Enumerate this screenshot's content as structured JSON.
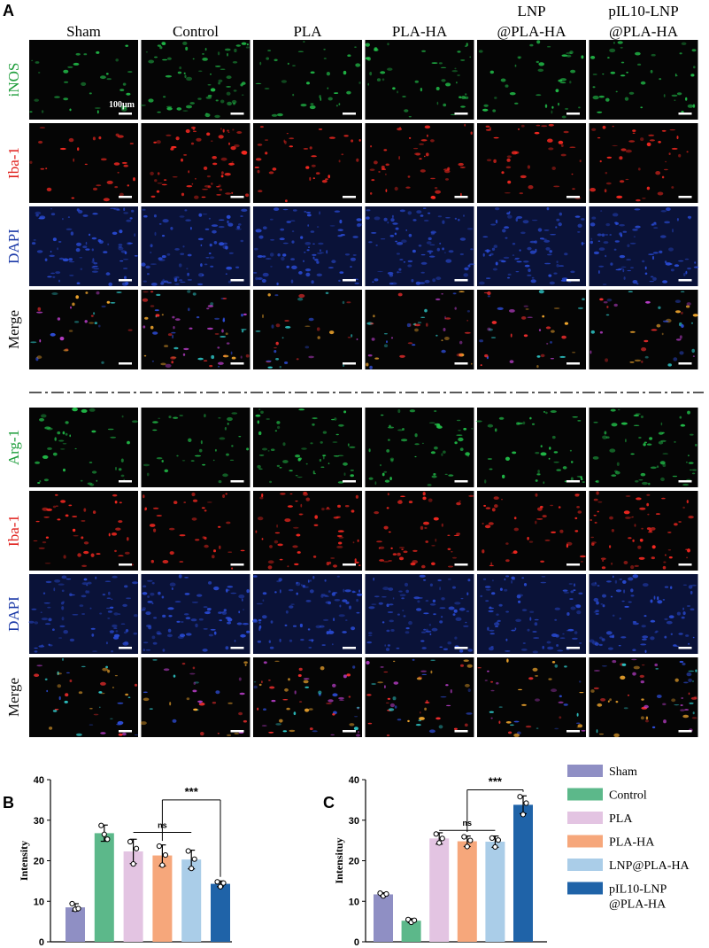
{
  "panel_labels": [
    "A",
    "B",
    "C"
  ],
  "columns": [
    "Sham",
    "Control",
    "PLA",
    "PLA-HA",
    "LNP\n@PLA-HA",
    "pIL10-LNP\n@PLA-HA"
  ],
  "scale_bar": "100μm",
  "blocks": [
    [
      {
        "label": "iNOS",
        "color": "#1f9e3c"
      },
      {
        "label": "Iba-1",
        "color": "#e0201c"
      },
      {
        "label": "DAPI",
        "color": "#1c3aa8"
      },
      {
        "label": "Merge",
        "color": "#111111"
      }
    ],
    [
      {
        "label": "Arg-1",
        "color": "#1f9e3c"
      },
      {
        "label": "Iba-1",
        "color": "#e0201c"
      },
      {
        "label": "DAPI",
        "color": "#1c3aa8"
      },
      {
        "label": "Merge",
        "color": "#111111"
      }
    ]
  ],
  "legend": [
    {
      "name": "Sham",
      "color": "#8f8fc4"
    },
    {
      "name": "Control",
      "color": "#5cb88a"
    },
    {
      "name": "PLA",
      "color": "#e3c4e2"
    },
    {
      "name": "PLA-HA",
      "color": "#f6a77b"
    },
    {
      "name": "LNP@PLA-HA",
      "color": "#aacde8"
    },
    {
      "name": "pIL10-LNP\n@PLA-HA",
      "color": "#1f63a8"
    }
  ],
  "chart_data": [
    {
      "type": "bar",
      "y_label": "Intensity",
      "ylim": [
        0,
        40
      ],
      "yticks": [
        0,
        10,
        20,
        30,
        40
      ],
      "values": [
        8.5,
        26.8,
        22.3,
        21.3,
        20.3,
        14.3
      ],
      "errors": [
        0.9,
        2.0,
        3.0,
        2.6,
        2.3,
        0.7
      ],
      "points": [
        [
          9.4,
          8.0,
          8.2
        ],
        [
          28.7,
          26.5,
          25.3
        ],
        [
          24.7,
          19.2,
          23.0
        ],
        [
          23.6,
          18.9,
          21.4
        ],
        [
          22.4,
          18.1,
          20.4
        ],
        [
          14.8,
          13.6,
          14.5
        ]
      ],
      "annotations": [
        {
          "text": "ns",
          "from": "PLA",
          "to": "LNP@PLA-HA",
          "y": 27,
          "legs": false
        },
        {
          "text": "***",
          "from": "PLA-HA",
          "to": "pIL10-LNP\n@PLA-HA",
          "y": 35,
          "legs": true
        }
      ]
    },
    {
      "type": "bar",
      "y_label": "Intensituy",
      "ylim": [
        0,
        40
      ],
      "yticks": [
        0,
        10,
        20,
        30,
        40
      ],
      "values": [
        11.7,
        5.2,
        25.5,
        24.8,
        24.7,
        33.8
      ],
      "errors": [
        0.4,
        0.5,
        1.4,
        1.3,
        1.4,
        2.2
      ],
      "points": [
        [
          12.0,
          11.3,
          11.8
        ],
        [
          5.5,
          4.8,
          5.3
        ],
        [
          26.6,
          24.4,
          25.5
        ],
        [
          25.9,
          23.5,
          25.0
        ],
        [
          25.6,
          23.4,
          25.1
        ],
        [
          35.8,
          31.4,
          34.2
        ]
      ],
      "annotations": [
        {
          "text": "ns",
          "from": "PLA",
          "to": "LNP@PLA-HA",
          "y": 27.5,
          "legs": false
        },
        {
          "text": "***",
          "from": "PLA-HA",
          "to": "pIL10-LNP\n@PLA-HA",
          "y": 37.5,
          "legs": true
        }
      ]
    }
  ]
}
